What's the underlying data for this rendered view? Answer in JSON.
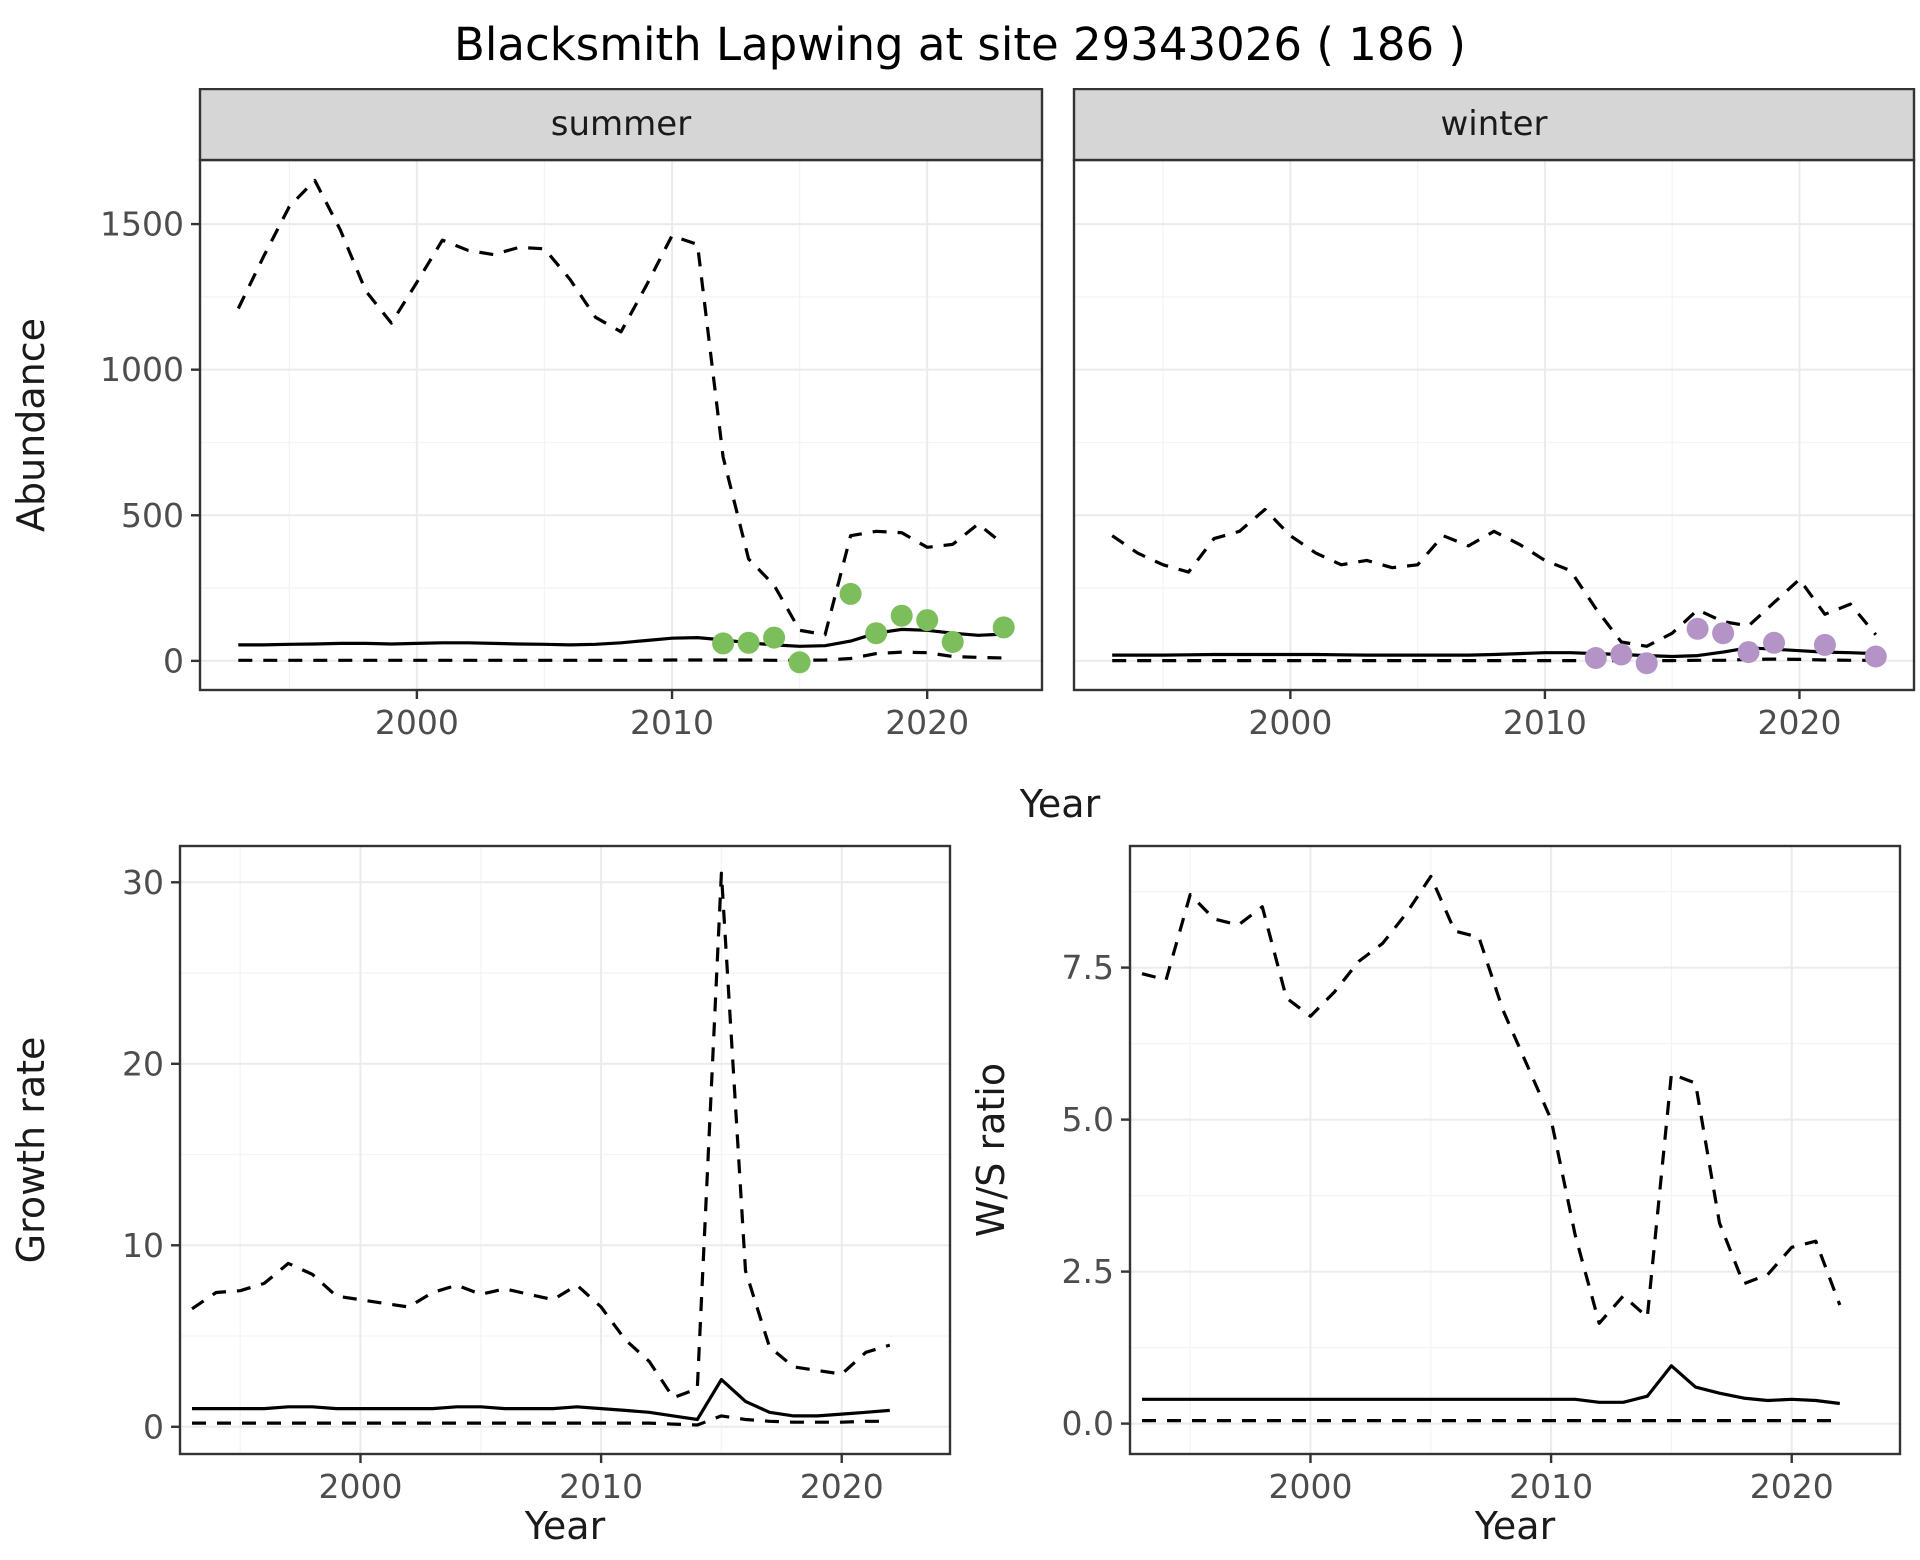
{
  "title": "Blacksmith Lapwing at site 29343026 ( 186 )",
  "shared_xlabel": "Year",
  "colors": {
    "summer_points": "#7CBE5B",
    "winter_points": "#B494C7",
    "line": "#000000",
    "strip_bg": "#D6D6D6",
    "grid_major": "#EBEBEB",
    "grid_minor": "#F4F4F4",
    "border": "#333333",
    "tick_text": "#4D4D4D"
  },
  "chart_data": [
    {
      "id": "abundance-summer",
      "type": "line",
      "facet_label": "summer",
      "ylabel": "Abundance",
      "xlabel": null,
      "xlim": [
        1991.5,
        2024.5
      ],
      "ylim": [
        -100,
        1720
      ],
      "xticks": [
        2000,
        2010,
        2020
      ],
      "xtick_labels": [
        "2000",
        "2010",
        "2020"
      ],
      "yticks": [
        0,
        500,
        1000,
        1500
      ],
      "ytick_labels": [
        "0",
        "500",
        "1000",
        "1500"
      ],
      "x": [
        1993,
        1994,
        1995,
        1996,
        1997,
        1998,
        1999,
        2000,
        2001,
        2002,
        2003,
        2004,
        2005,
        2006,
        2007,
        2008,
        2009,
        2010,
        2011,
        2012,
        2013,
        2014,
        2015,
        2016,
        2017,
        2018,
        2019,
        2020,
        2021,
        2022,
        2023
      ],
      "series": [
        {
          "name": "upper_ci",
          "style": "dashed",
          "y": [
            1210,
            1390,
            1560,
            1650,
            1480,
            1270,
            1160,
            1300,
            1445,
            1410,
            1395,
            1420,
            1415,
            1310,
            1180,
            1130,
            1290,
            1460,
            1430,
            700,
            350,
            260,
            105,
            90,
            430,
            445,
            440,
            390,
            400,
            470,
            400
          ]
        },
        {
          "name": "fit",
          "style": "solid",
          "y": [
            55,
            55,
            57,
            58,
            60,
            60,
            58,
            60,
            62,
            62,
            60,
            58,
            57,
            55,
            57,
            62,
            70,
            78,
            80,
            72,
            62,
            55,
            50,
            52,
            68,
            95,
            108,
            105,
            95,
            88,
            92
          ]
        },
        {
          "name": "lower_ci",
          "style": "dashed",
          "y": [
            2,
            2,
            2,
            2,
            2,
            2,
            2,
            2,
            2,
            2,
            2,
            2,
            2,
            2,
            2,
            2,
            2,
            3,
            3,
            3,
            3,
            2,
            2,
            3,
            8,
            25,
            30,
            28,
            15,
            12,
            10
          ]
        }
      ],
      "points": {
        "name": "observed-counts-summer",
        "color_key": "summer_points",
        "x": [
          2012,
          2013,
          2014,
          2015,
          2017,
          2018,
          2019,
          2020,
          2021,
          2023
        ],
        "y": [
          60,
          62,
          80,
          -5,
          230,
          95,
          155,
          140,
          65,
          115
        ]
      }
    },
    {
      "id": "abundance-winter",
      "type": "line",
      "facet_label": "winter",
      "ylabel": null,
      "xlabel": null,
      "xlim": [
        1991.5,
        2024.5
      ],
      "ylim": [
        -100,
        1720
      ],
      "xticks": [
        2000,
        2010,
        2020
      ],
      "xtick_labels": [
        "2000",
        "2010",
        "2020"
      ],
      "yticks": [
        0,
        500,
        1000,
        1500
      ],
      "ytick_labels": [
        "0",
        "500",
        "1000",
        "1500"
      ],
      "x": [
        1993,
        1994,
        1995,
        1996,
        1997,
        1998,
        1999,
        2000,
        2001,
        2002,
        2003,
        2004,
        2005,
        2006,
        2007,
        2008,
        2009,
        2010,
        2011,
        2012,
        2013,
        2014,
        2015,
        2016,
        2017,
        2018,
        2019,
        2020,
        2021,
        2022,
        2023
      ],
      "series": [
        {
          "name": "upper_ci",
          "style": "dashed",
          "y": [
            430,
            370,
            330,
            305,
            420,
            445,
            520,
            430,
            370,
            330,
            345,
            320,
            330,
            430,
            395,
            445,
            400,
            345,
            310,
            180,
            65,
            50,
            95,
            175,
            135,
            120,
            200,
            280,
            160,
            195,
            90
          ]
        },
        {
          "name": "fit",
          "style": "solid",
          "y": [
            20,
            20,
            20,
            21,
            22,
            22,
            22,
            22,
            22,
            21,
            20,
            20,
            20,
            20,
            20,
            22,
            25,
            28,
            28,
            25,
            22,
            18,
            15,
            18,
            30,
            45,
            40,
            35,
            30,
            28,
            25
          ]
        },
        {
          "name": "lower_ci",
          "style": "dashed",
          "y": [
            1,
            1,
            1,
            1,
            1,
            1,
            1,
            1,
            1,
            1,
            1,
            1,
            1,
            1,
            1,
            1,
            1,
            1,
            1,
            1,
            1,
            1,
            1,
            2,
            2,
            5,
            6,
            5,
            3,
            2,
            2
          ]
        }
      ],
      "points": {
        "name": "observed-counts-winter",
        "color_key": "winter_points",
        "x": [
          2012,
          2013,
          2014,
          2016,
          2017,
          2018,
          2019,
          2021,
          2023
        ],
        "y": [
          10,
          22,
          -8,
          110,
          95,
          30,
          62,
          55,
          15
        ]
      }
    },
    {
      "id": "growth-rate",
      "type": "line",
      "facet_label": null,
      "ylabel": "Growth rate",
      "xlabel": "Year",
      "xlim": [
        1992.5,
        2024.5
      ],
      "ylim": [
        -1.5,
        32
      ],
      "xticks": [
        2000,
        2010,
        2020
      ],
      "xtick_labels": [
        "2000",
        "2010",
        "2020"
      ],
      "yticks": [
        0,
        10,
        20,
        30
      ],
      "ytick_labels": [
        "0",
        "10",
        "20",
        "30"
      ],
      "x": [
        1993,
        1994,
        1995,
        1996,
        1997,
        1998,
        1999,
        2000,
        2001,
        2002,
        2003,
        2004,
        2005,
        2006,
        2007,
        2008,
        2009,
        2010,
        2011,
        2012,
        2013,
        2014,
        2015,
        2016,
        2017,
        2018,
        2019,
        2020,
        2021,
        2022
      ],
      "series": [
        {
          "name": "upper_ci",
          "style": "dashed",
          "y": [
            6.5,
            7.4,
            7.5,
            7.9,
            9.0,
            8.4,
            7.2,
            7.0,
            6.8,
            6.6,
            7.4,
            7.8,
            7.3,
            7.6,
            7.3,
            7.0,
            7.8,
            6.6,
            4.8,
            3.6,
            1.6,
            2.1,
            30.5,
            8.6,
            4.4,
            3.3,
            3.1,
            2.9,
            4.1,
            4.5
          ]
        },
        {
          "name": "fit",
          "style": "solid",
          "y": [
            1.0,
            1.0,
            1.0,
            1.0,
            1.1,
            1.1,
            1.0,
            1.0,
            1.0,
            1.0,
            1.0,
            1.1,
            1.1,
            1.0,
            1.0,
            1.0,
            1.1,
            1.0,
            0.9,
            0.8,
            0.6,
            0.4,
            2.6,
            1.4,
            0.8,
            0.6,
            0.6,
            0.7,
            0.8,
            0.9
          ]
        },
        {
          "name": "lower_ci",
          "style": "dashed",
          "y": [
            0.2,
            0.2,
            0.2,
            0.2,
            0.2,
            0.2,
            0.2,
            0.2,
            0.2,
            0.2,
            0.2,
            0.2,
            0.2,
            0.2,
            0.2,
            0.2,
            0.2,
            0.2,
            0.2,
            0.2,
            0.15,
            0.1,
            0.6,
            0.4,
            0.3,
            0.25,
            0.25,
            0.25,
            0.3,
            0.3
          ]
        }
      ],
      "points": null
    },
    {
      "id": "ws-ratio",
      "type": "line",
      "facet_label": null,
      "ylabel": "W/S ratio",
      "xlabel": "Year",
      "xlim": [
        1992.5,
        2024.5
      ],
      "ylim": [
        -0.5,
        9.5
      ],
      "xticks": [
        2000,
        2010,
        2020
      ],
      "xtick_labels": [
        "2000",
        "2010",
        "2020"
      ],
      "yticks": [
        0,
        2.5,
        5,
        7.5
      ],
      "ytick_labels": [
        "0.0",
        "2.5",
        "5.0",
        "7.5"
      ],
      "x": [
        1993,
        1994,
        1995,
        1996,
        1997,
        1998,
        1999,
        2000,
        2001,
        2002,
        2003,
        2004,
        2005,
        2006,
        2007,
        2008,
        2009,
        2010,
        2011,
        2012,
        2013,
        2014,
        2015,
        2016,
        2017,
        2018,
        2019,
        2020,
        2021,
        2022
      ],
      "series": [
        {
          "name": "upper_ci",
          "style": "dashed",
          "y": [
            7.4,
            7.3,
            8.7,
            8.3,
            8.2,
            8.5,
            7.0,
            6.7,
            7.1,
            7.6,
            7.9,
            8.4,
            9.0,
            8.1,
            8.0,
            6.8,
            5.9,
            5.0,
            3.1,
            1.65,
            2.1,
            1.75,
            5.75,
            5.6,
            3.3,
            2.3,
            2.45,
            2.9,
            3.0,
            1.95
          ]
        },
        {
          "name": "fit",
          "style": "solid",
          "y": [
            0.4,
            0.4,
            0.4,
            0.4,
            0.4,
            0.4,
            0.4,
            0.4,
            0.4,
            0.4,
            0.4,
            0.4,
            0.4,
            0.4,
            0.4,
            0.4,
            0.4,
            0.4,
            0.4,
            0.35,
            0.35,
            0.45,
            0.95,
            0.6,
            0.5,
            0.42,
            0.38,
            0.4,
            0.38,
            0.33
          ]
        },
        {
          "name": "lower_ci",
          "style": "dashed",
          "y": [
            0.05,
            0.05,
            0.05,
            0.05,
            0.05,
            0.05,
            0.05,
            0.05,
            0.05,
            0.05,
            0.05,
            0.05,
            0.05,
            0.05,
            0.05,
            0.05,
            0.05,
            0.05,
            0.05,
            0.05,
            0.05,
            0.05,
            0.05,
            0.05,
            0.05,
            0.05,
            0.05,
            0.05,
            0.05,
            0.05
          ]
        }
      ],
      "points": null
    }
  ]
}
